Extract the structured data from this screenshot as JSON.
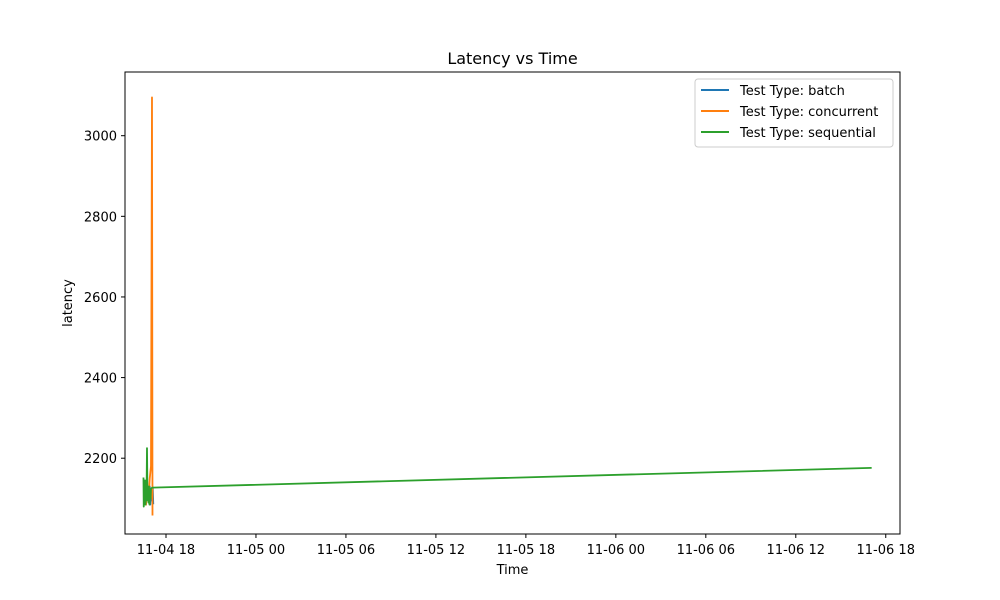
{
  "chart_data": {
    "type": "line",
    "title": "Latency vs Time",
    "xlabel": "Time",
    "ylabel": "latency",
    "x_axis_type": "datetime",
    "xlim": [
      "2024-11-04 15:16",
      "2024-11-06 18:57"
    ],
    "ylim": [
      2012,
      3158
    ],
    "x_ticks": [
      "2024-11-04 18:00",
      "2024-11-05 00:00",
      "2024-11-05 06:00",
      "2024-11-05 12:00",
      "2024-11-05 18:00",
      "2024-11-06 00:00",
      "2024-11-06 06:00",
      "2024-11-06 12:00",
      "2024-11-06 18:00"
    ],
    "x_tick_labels": [
      "11-04 18",
      "11-05 00",
      "11-05 06",
      "11-05 12",
      "11-05 18",
      "11-06 00",
      "11-06 06",
      "11-06 12",
      "11-06 18"
    ],
    "y_ticks": [
      2200,
      2400,
      2600,
      2800,
      3000
    ],
    "y_tick_labels": [
      "2200",
      "2400",
      "2600",
      "2800",
      "3000"
    ],
    "grid": false,
    "legend_position": "top-right",
    "series": [
      {
        "name": "Test Type: batch",
        "color": "#1f77b4",
        "x": [
          "2024-11-04 16:53",
          "2024-11-04 16:55",
          "2024-11-04 16:57",
          "2024-11-04 16:59",
          "2024-11-04 17:01",
          "2024-11-04 17:03",
          "2024-11-04 17:07",
          "2024-11-04 17:09"
        ],
        "y": [
          2090,
          2130,
          2085,
          2110,
          2095,
          2120,
          2128,
          2088
        ]
      },
      {
        "name": "Test Type: concurrent",
        "color": "#ff7f0e",
        "x": [
          "2024-11-04 16:40",
          "2024-11-04 16:45",
          "2024-11-04 16:50",
          "2024-11-04 16:55",
          "2024-11-04 17:00",
          "2024-11-04 17:04",
          "2024-11-04 17:06"
        ],
        "y": [
          2085,
          2125,
          2095,
          2150,
          2180,
          3095,
          2060
        ]
      },
      {
        "name": "Test Type: sequential",
        "color": "#2ca02c",
        "x": [
          "2024-11-04 16:30",
          "2024-11-04 16:31",
          "2024-11-04 16:33",
          "2024-11-04 16:35",
          "2024-11-04 16:36",
          "2024-11-04 16:38",
          "2024-11-04 16:40",
          "2024-11-04 16:42",
          "2024-11-04 16:44",
          "2024-11-04 16:46",
          "2024-11-04 16:48",
          "2024-11-04 16:50",
          "2024-11-04 16:52",
          "2024-11-04 16:54",
          "2024-11-04 16:56",
          "2024-11-04 16:58",
          "2024-11-04 17:00",
          "2024-11-04 17:05",
          "2024-11-06 17:00"
        ],
        "y": [
          2150,
          2080,
          2100,
          2090,
          2145,
          2085,
          2110,
          2095,
          2225,
          2105,
          2100,
          2090,
          2130,
          2085,
          2110,
          2100,
          2125,
          2127,
          2176
        ]
      }
    ]
  }
}
